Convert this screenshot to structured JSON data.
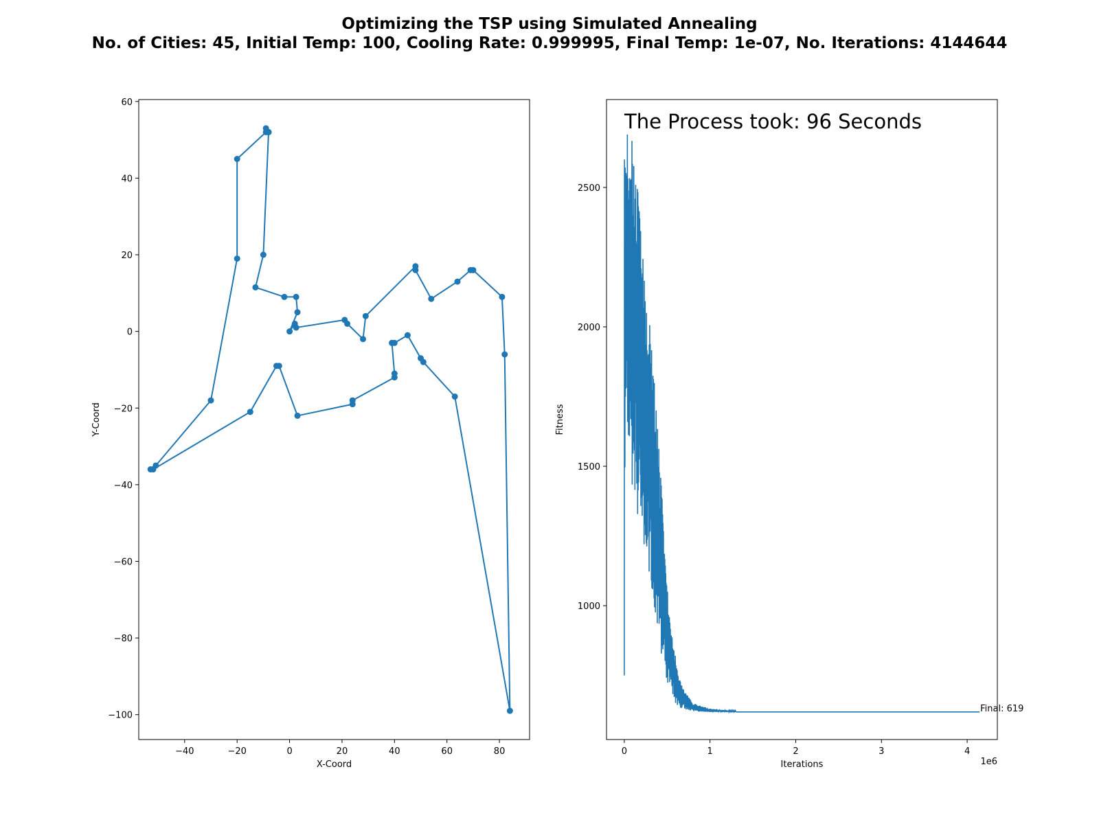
{
  "figure": {
    "title_line_1": "Optimizing the TSP using Simulated Annealing",
    "title_line_2": "No. of Cities: 45, Initial Temp: 100, Cooling Rate: 0.999995, Final Temp: 1e-07, No. Iterations: 4144644"
  },
  "chart_data": [
    {
      "type": "line",
      "xlabel": "X-Coord",
      "ylabel": "Y-Coord",
      "xlim": [
        -57.5,
        91.5
      ],
      "ylim": [
        -106.5,
        60.5
      ],
      "x_ticks": [
        -40,
        -20,
        0,
        20,
        40,
        60,
        80
      ],
      "y_ticks": [
        -100,
        -80,
        -60,
        -40,
        -20,
        0,
        20,
        40,
        60
      ],
      "grid": false,
      "color": "#1f77b4",
      "markers": true,
      "route": [
        [
          -8,
          52
        ],
        [
          -9,
          53
        ],
        [
          -9,
          52
        ],
        [
          -20,
          45
        ],
        [
          -20,
          19
        ],
        [
          -30,
          -18
        ],
        [
          -51,
          -35
        ],
        [
          -53,
          -36
        ],
        [
          -52,
          -36
        ],
        [
          -15,
          -21
        ],
        [
          -5,
          -9
        ],
        [
          -4,
          -9
        ],
        [
          3,
          -22
        ],
        [
          24,
          -19
        ],
        [
          24,
          -18
        ],
        [
          40,
          -12
        ],
        [
          40,
          -11
        ],
        [
          39,
          -3
        ],
        [
          40,
          -3
        ],
        [
          45,
          -1
        ],
        [
          50,
          -7
        ],
        [
          51,
          -8
        ],
        [
          63,
          -17
        ],
        [
          84,
          -99
        ],
        [
          82,
          -6
        ],
        [
          81,
          9
        ],
        [
          70,
          16
        ],
        [
          69,
          16
        ],
        [
          64,
          13
        ],
        [
          54,
          8.5
        ],
        [
          48,
          16
        ],
        [
          48,
          17
        ],
        [
          29,
          4
        ],
        [
          28,
          -2
        ],
        [
          22,
          2
        ],
        [
          21,
          3
        ],
        [
          2.5,
          1
        ],
        [
          2,
          2
        ],
        [
          0,
          0
        ],
        [
          3,
          5
        ],
        [
          2.5,
          9
        ],
        [
          -2,
          9
        ],
        [
          -13,
          11.5
        ],
        [
          -10,
          20
        ],
        [
          -8,
          52
        ]
      ]
    },
    {
      "type": "line",
      "xlabel": "Iterations",
      "ylabel": "Fitness",
      "xlim": [
        -207232,
        4351876
      ],
      "ylim": [
        520,
        2815
      ],
      "x_ticks": [
        0,
        1,
        2,
        3,
        4
      ],
      "x_offset_label": "1e6",
      "y_ticks": [
        1000,
        1500,
        2000,
        2500
      ],
      "grid": false,
      "color": "#1f77b4",
      "annotation": "The Process took: 96 Seconds",
      "final_label": "Final: 619",
      "iterations": 4144644,
      "final_value": 619,
      "initial_value": 750,
      "envelope": [
        {
          "x": 0,
          "lo": 750,
          "hi": 750
        },
        {
          "x": 10000,
          "lo": 1620,
          "hi": 2620
        },
        {
          "x": 40000,
          "lo": 1660,
          "hi": 2700
        },
        {
          "x": 80000,
          "lo": 1450,
          "hi": 2700
        },
        {
          "x": 120000,
          "lo": 1400,
          "hi": 2560
        },
        {
          "x": 160000,
          "lo": 1320,
          "hi": 2480
        },
        {
          "x": 200000,
          "lo": 1300,
          "hi": 2300
        },
        {
          "x": 250000,
          "lo": 1170,
          "hi": 2140
        },
        {
          "x": 300000,
          "lo": 1110,
          "hi": 2010
        },
        {
          "x": 350000,
          "lo": 1000,
          "hi": 1800
        },
        {
          "x": 400000,
          "lo": 910,
          "hi": 1580
        },
        {
          "x": 450000,
          "lo": 780,
          "hi": 1340
        },
        {
          "x": 500000,
          "lo": 730,
          "hi": 1080
        },
        {
          "x": 550000,
          "lo": 690,
          "hi": 920
        },
        {
          "x": 600000,
          "lo": 650,
          "hi": 810
        },
        {
          "x": 650000,
          "lo": 635,
          "hi": 730
        },
        {
          "x": 700000,
          "lo": 630,
          "hi": 700
        },
        {
          "x": 800000,
          "lo": 622,
          "hi": 650
        },
        {
          "x": 900000,
          "lo": 620,
          "hi": 640
        },
        {
          "x": 1000000,
          "lo": 619,
          "hi": 630
        },
        {
          "x": 1300000,
          "lo": 619,
          "hi": 622
        },
        {
          "x": 4144644,
          "lo": 619,
          "hi": 619
        }
      ]
    }
  ]
}
